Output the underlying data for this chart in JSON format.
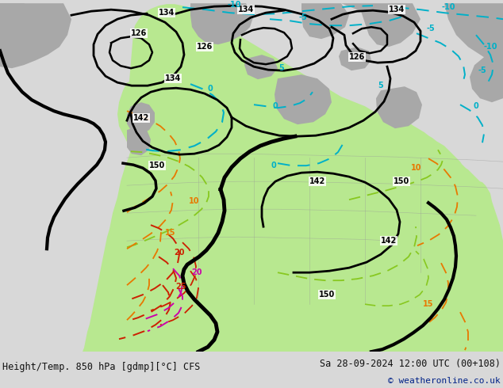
{
  "title_left": "Height/Temp. 850 hPa [gdmp][°C] CFS",
  "title_right": "Sa 28-09-2024 12:00 UTC (00+108)",
  "copyright": "© weatheronline.co.uk",
  "bg_color": "#d8d8d8",
  "land_green_light": "#b8e890",
  "land_green_mid": "#a8d878",
  "land_gray": "#a8a8a8",
  "ocean_color": "#d0d0d0",
  "black": "#000000",
  "cyan_color": "#00b0c8",
  "orange_color": "#e87800",
  "red_color": "#cc2000",
  "magenta_color": "#cc00aa",
  "limegreen_color": "#88c820",
  "darkgreen_color": "#50a030",
  "fig_width": 6.34,
  "fig_height": 4.9,
  "dpi": 100,
  "title_fontsize": 8.5,
  "copy_fontsize": 8.0
}
